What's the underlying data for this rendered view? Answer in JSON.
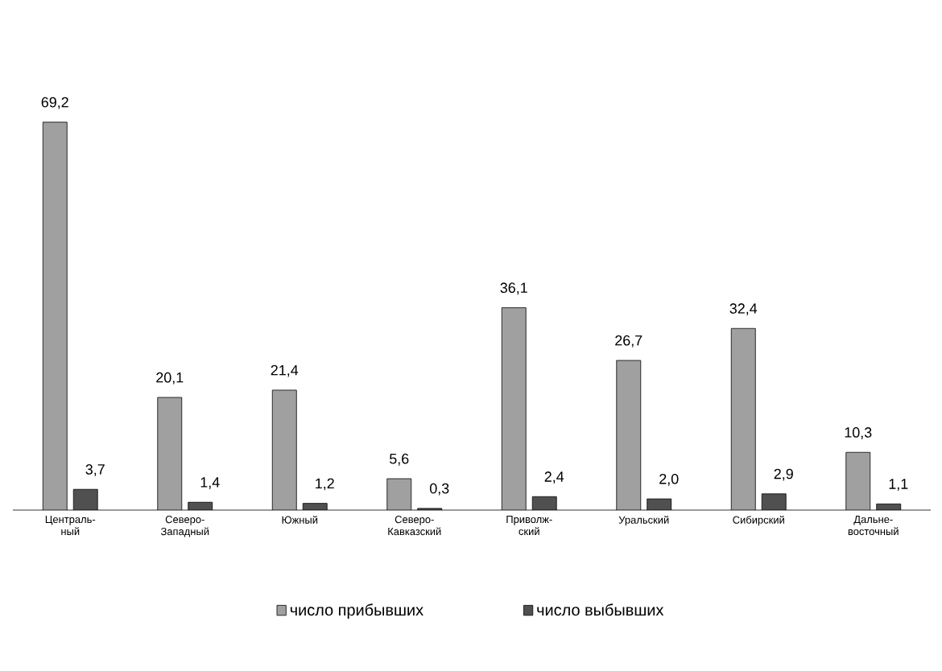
{
  "chart_data": {
    "type": "bar",
    "categories": [
      "Централь-ный",
      "Северо-Западный",
      "Южный",
      "Северо-Кавказский",
      "Приволж-ский",
      "Уральский",
      "Сибирский",
      "Дальне-восточный"
    ],
    "series": [
      {
        "name": "число прибывших",
        "color": "#a0a0a0",
        "values": [
          69.2,
          20.1,
          21.4,
          5.6,
          36.1,
          26.7,
          32.4,
          10.3
        ],
        "value_labels": [
          "69,2",
          "20,1",
          "21,4",
          "5,6",
          "36,1",
          "26,7",
          "32,4",
          "10,3"
        ]
      },
      {
        "name": "число выбывших",
        "color": "#505050",
        "values": [
          3.7,
          1.4,
          1.2,
          0.3,
          2.4,
          2.0,
          2.9,
          1.1
        ],
        "value_labels": [
          "3,7",
          "1,4",
          "1,2",
          "0,3",
          "2,4",
          "2,0",
          "2,9",
          "1,1"
        ]
      }
    ],
    "tick_labels": "x",
    "grid": false,
    "legend": "bottom"
  }
}
